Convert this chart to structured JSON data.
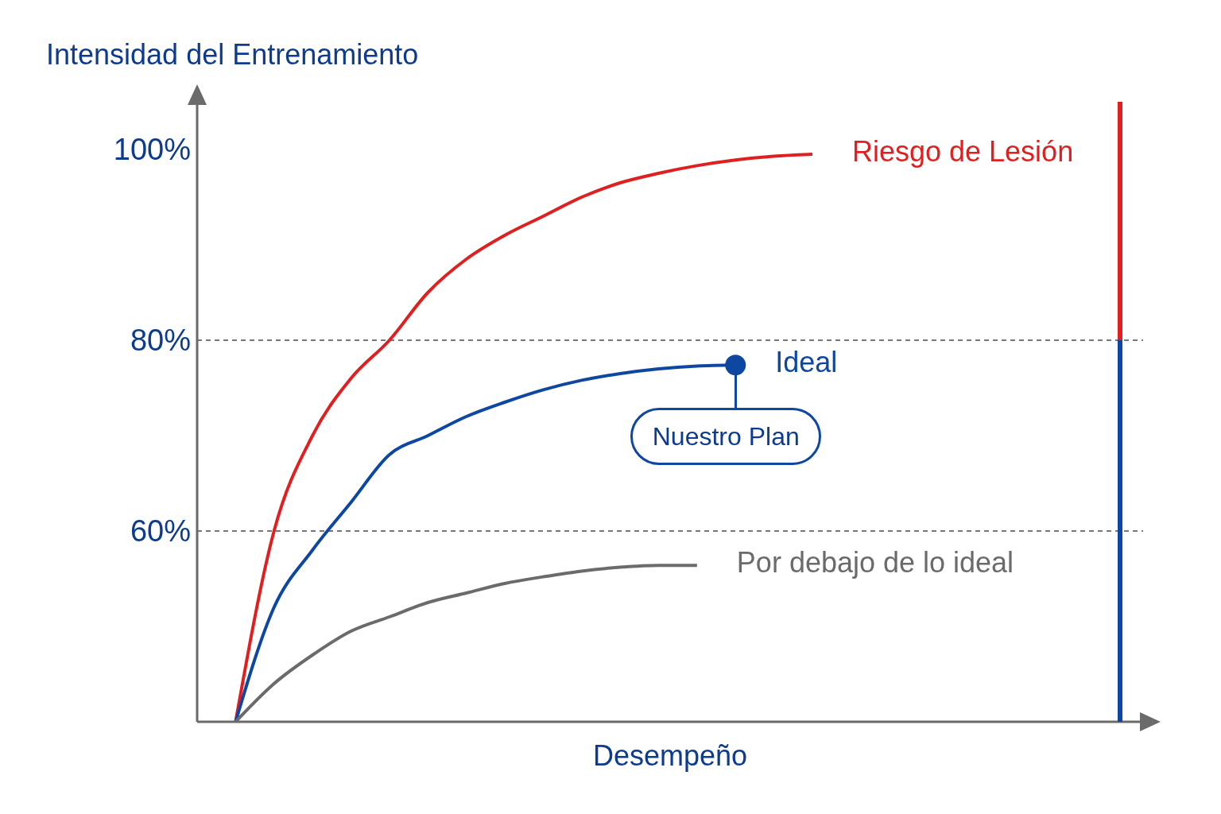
{
  "chart_data": {
    "type": "line",
    "ylabel": "Intensidad del Entrenamiento",
    "xlabel": "Desempeño",
    "categories": [
      null,
      null,
      null,
      null,
      null,
      null,
      null,
      null,
      null,
      null,
      null,
      null,
      null,
      null,
      null,
      null,
      null,
      null,
      null,
      null,
      null,
      null,
      null,
      null,
      null
    ],
    "series": [
      {
        "name": "Riesgo de Lesión",
        "color": "#e02020",
        "values": [
          null,
          40,
          60,
          70,
          76,
          80,
          85,
          88.5,
          91,
          93,
          95,
          96.5,
          97.5,
          98.3,
          98.9,
          99.3,
          99.5,
          null,
          null,
          null,
          null,
          null,
          null,
          null,
          null
        ]
      },
      {
        "name": "Ideal",
        "color": "#0d47a1",
        "values": [
          null,
          40,
          52,
          58,
          63,
          68,
          70,
          72,
          73.5,
          74.8,
          75.8,
          76.5,
          77,
          77.3,
          77.4,
          null,
          null,
          null,
          null,
          null,
          null,
          null,
          null,
          null,
          null
        ]
      },
      {
        "type": "scatter",
        "color": "#0d47a1",
        "marker": "circle",
        "values": [
          null,
          null,
          null,
          null,
          null,
          null,
          null,
          null,
          null,
          null,
          null,
          null,
          null,
          null,
          77.4,
          null,
          null,
          null,
          null,
          null,
          null,
          null,
          null,
          null,
          null
        ]
      },
      {
        "name": "Por debajo de lo ideal",
        "color": "#6b6b6b",
        "values": [
          null,
          40,
          44,
          47,
          49.5,
          51,
          52.5,
          53.5,
          54.5,
          55.2,
          55.8,
          56.2,
          56.4,
          56.4,
          null,
          null,
          null,
          null,
          null,
          null,
          null,
          null,
          null,
          null,
          null
        ]
      }
    ],
    "ylim": [
      40,
      105
    ],
    "yticks": [
      {
        "value": 60,
        "label": "60%"
      },
      {
        "value": 80,
        "label": "80%"
      },
      {
        "value": 100,
        "label": "100%"
      }
    ],
    "tick_labels": "y",
    "marker": "none",
    "ref_lines": [
      {
        "axis": "y",
        "value": 80,
        "color": "#777777",
        "line_style": "dashed"
      },
      {
        "axis": "y",
        "value": 60,
        "color": "#777777",
        "line_style": "dashed"
      }
    ],
    "annotations": [
      {
        "text": "Nuestro Plan",
        "y": 77.4
      }
    ]
  }
}
